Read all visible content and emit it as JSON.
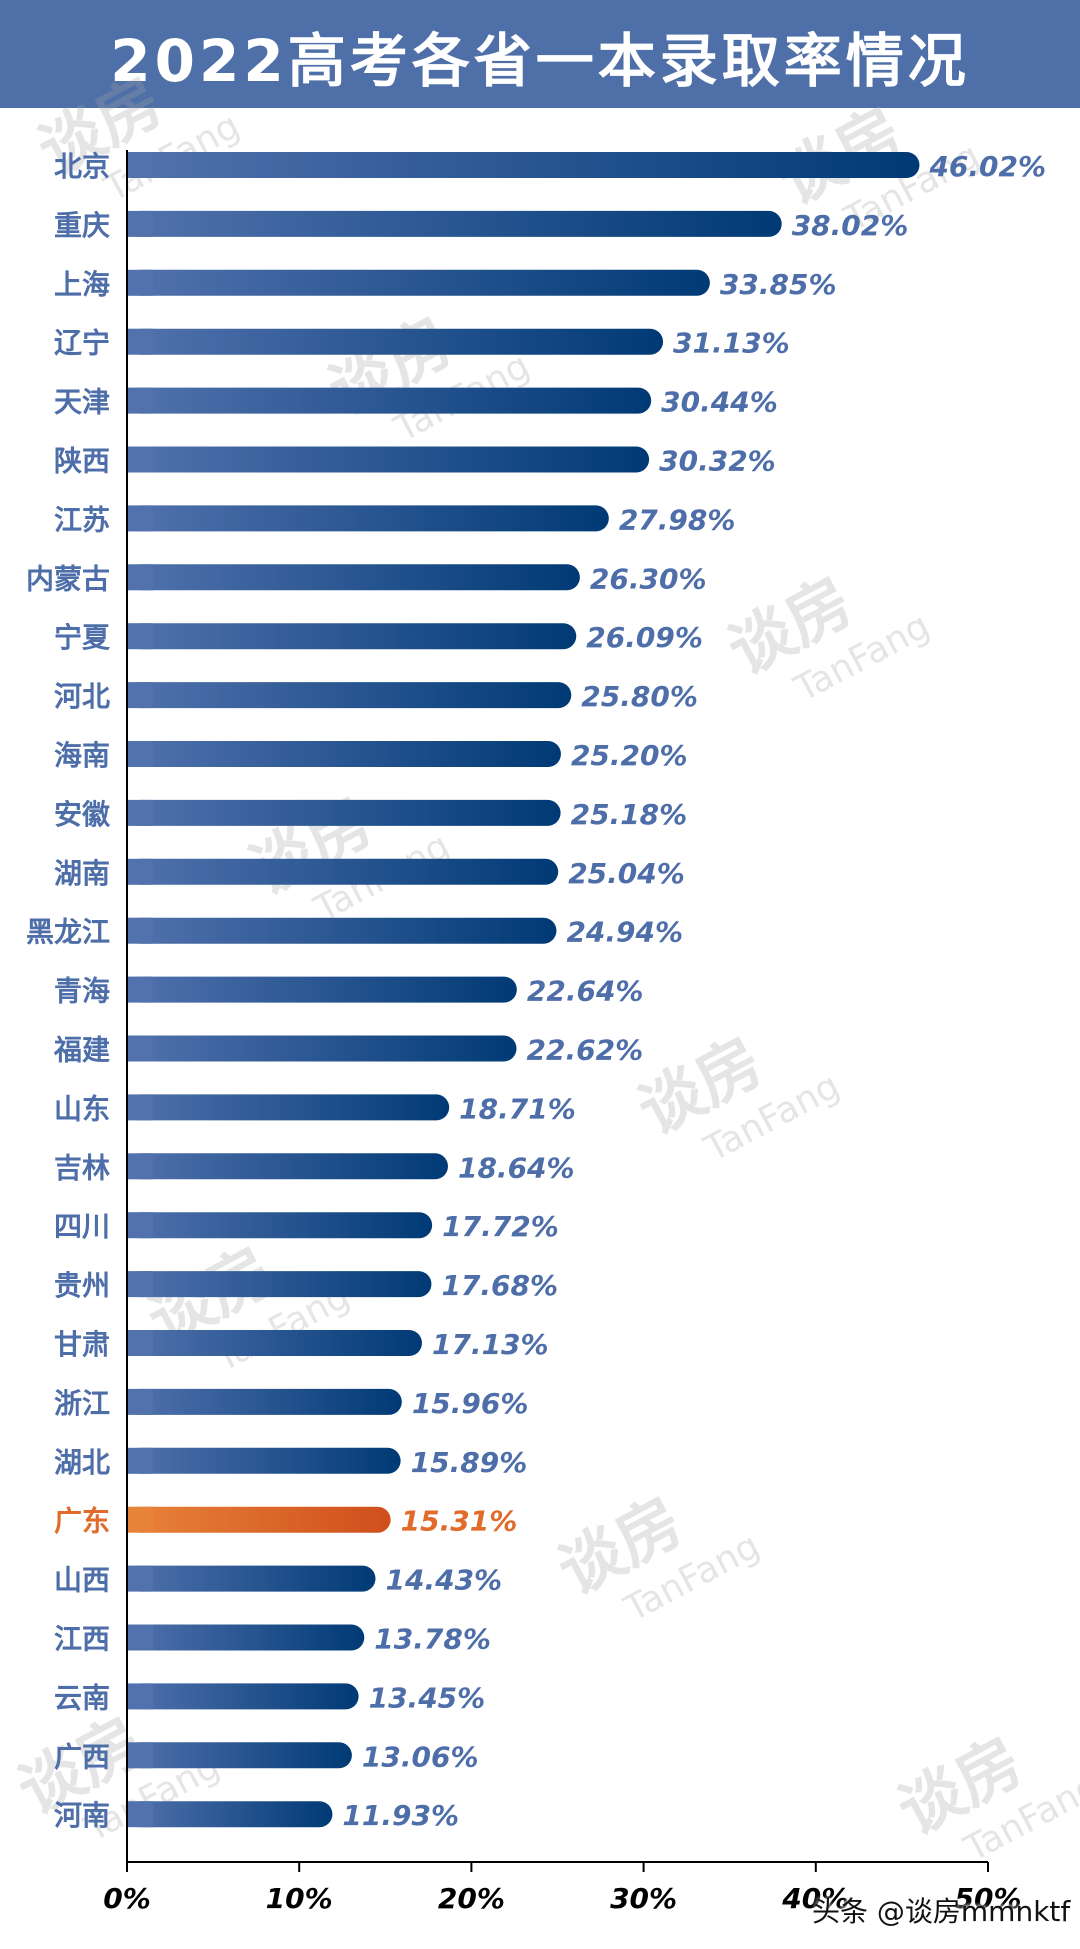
{
  "title": "2022高考各省一本录取率情况",
  "watermark": {
    "cn": "谈房",
    "en": "TanFang"
  },
  "credit": "头条 @谈房mmnktf",
  "colors": {
    "header": "#4f6fa8",
    "bar_start": "#5272ad",
    "bar_end": "#003a75",
    "highlight_start": "#e8833a",
    "highlight_end": "#cf4f1c",
    "label": "#4d6ea8",
    "highlight_label": "#e06b2a",
    "axis": "#000000"
  },
  "chart_data": {
    "type": "bar",
    "orientation": "horizontal",
    "title": "2022高考各省一本录取率情况",
    "xlim": [
      0,
      50
    ],
    "x_ticks": [
      "0%",
      "10%",
      "20%",
      "30%",
      "40%",
      "50%"
    ],
    "grid": false,
    "categories": [
      "北京",
      "重庆",
      "上海",
      "辽宁",
      "天津",
      "陕西",
      "江苏",
      "内蒙古",
      "宁夏",
      "河北",
      "海南",
      "安徽",
      "湖南",
      "黑龙江",
      "青海",
      "福建",
      "山东",
      "吉林",
      "四川",
      "贵州",
      "甘肃",
      "浙江",
      "湖北",
      "广东",
      "山西",
      "江西",
      "云南",
      "广西",
      "河南"
    ],
    "values": [
      46.02,
      38.02,
      33.85,
      31.13,
      30.44,
      30.32,
      27.98,
      26.3,
      26.09,
      25.8,
      25.2,
      25.18,
      25.04,
      24.94,
      22.64,
      22.62,
      18.71,
      18.64,
      17.72,
      17.68,
      17.13,
      15.96,
      15.89,
      15.31,
      14.43,
      13.78,
      13.45,
      13.06,
      11.93
    ],
    "value_labels": [
      "46.02%",
      "38.02%",
      "33.85%",
      "31.13%",
      "30.44%",
      "30.32%",
      "27.98%",
      "26.30%",
      "26.09%",
      "25.80%",
      "25.20%",
      "25.18%",
      "25.04%",
      "24.94%",
      "22.64%",
      "22.62%",
      "18.71%",
      "18.64%",
      "17.72%",
      "17.68%",
      "17.13%",
      "15.96%",
      "15.89%",
      "15.31%",
      "14.43%",
      "13.78%",
      "13.45%",
      "13.06%",
      "11.93%"
    ],
    "highlight": "广东"
  }
}
